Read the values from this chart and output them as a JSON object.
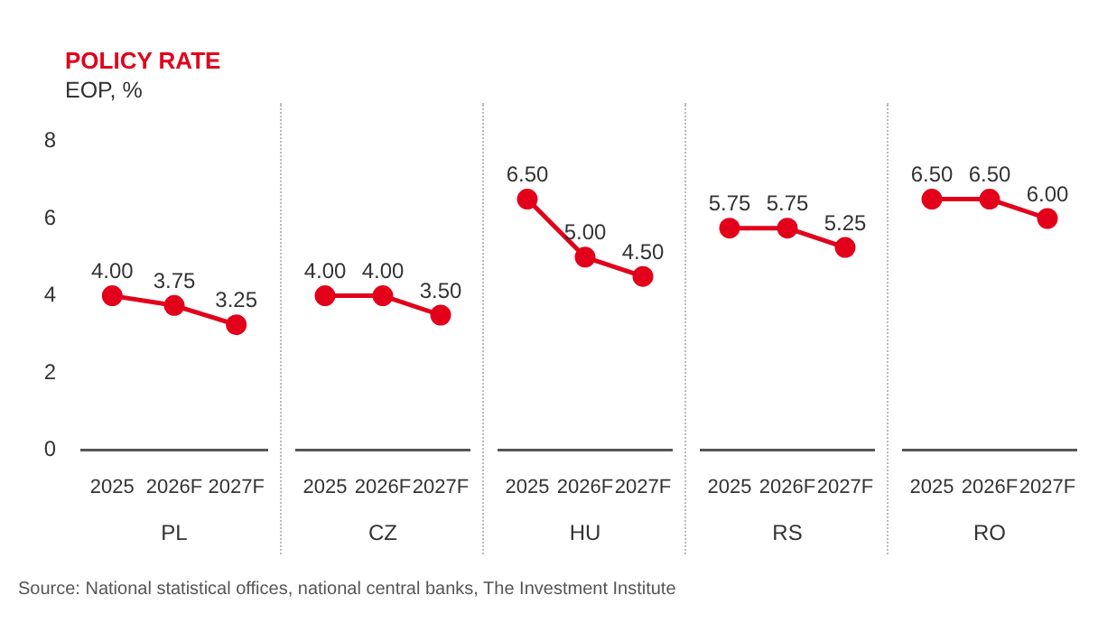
{
  "chart_data": [
    {
      "type": "line",
      "title": "POLICY RATE",
      "subtitle": "EOP, %",
      "xlabel": "PL",
      "categories": [
        "2025",
        "2026F",
        "2027F"
      ],
      "series": [
        {
          "color": "#e2001a",
          "values": [
            4.0,
            3.75,
            3.25
          ],
          "value_labels": [
            "4.00",
            "3.75",
            "3.25"
          ]
        }
      ],
      "ylim": [
        0,
        8
      ],
      "yticks": [
        0,
        2,
        4,
        6,
        8
      ],
      "marker": "circle",
      "line_style": "solid",
      "legend": false,
      "annotations": [
        "Source: National statistical offices, national central banks, The Investment Institute"
      ]
    },
    {
      "type": "line",
      "xlabel": "CZ",
      "categories": [
        "2025",
        "2026F",
        "2027F"
      ],
      "series": [
        {
          "color": "#e2001a",
          "values": [
            4.0,
            4.0,
            3.5
          ],
          "value_labels": [
            "4.00",
            "4.00",
            "3.50"
          ]
        }
      ],
      "ylim": [
        0,
        8
      ],
      "tick_labels": "x",
      "marker": "circle",
      "line_style": "solid",
      "legend": false
    },
    {
      "type": "line",
      "xlabel": "HU",
      "categories": [
        "2025",
        "2026F",
        "2027F"
      ],
      "series": [
        {
          "color": "#e2001a",
          "values": [
            6.5,
            5.0,
            4.5
          ],
          "value_labels": [
            "6.50",
            "5.00",
            "4.50"
          ]
        }
      ],
      "ylim": [
        0,
        8
      ],
      "tick_labels": "x",
      "marker": "circle",
      "line_style": "solid",
      "legend": false
    },
    {
      "type": "line",
      "xlabel": "RS",
      "categories": [
        "2025",
        "2026F",
        "2027F"
      ],
      "series": [
        {
          "color": "#e2001a",
          "values": [
            5.75,
            5.75,
            5.25
          ],
          "value_labels": [
            "5.75",
            "5.75",
            "5.25"
          ]
        }
      ],
      "ylim": [
        0,
        8
      ],
      "tick_labels": "x",
      "marker": "circle",
      "line_style": "solid",
      "legend": false
    },
    {
      "type": "line",
      "xlabel": "RO",
      "categories": [
        "2025",
        "2026F",
        "2027F"
      ],
      "series": [
        {
          "color": "#e2001a",
          "values": [
            6.5,
            6.5,
            6.0
          ],
          "value_labels": [
            "6.50",
            "6.50",
            "6.00"
          ]
        }
      ],
      "ylim": [
        0,
        8
      ],
      "tick_labels": "x",
      "marker": "circle",
      "line_style": "solid",
      "legend": false
    }
  ]
}
